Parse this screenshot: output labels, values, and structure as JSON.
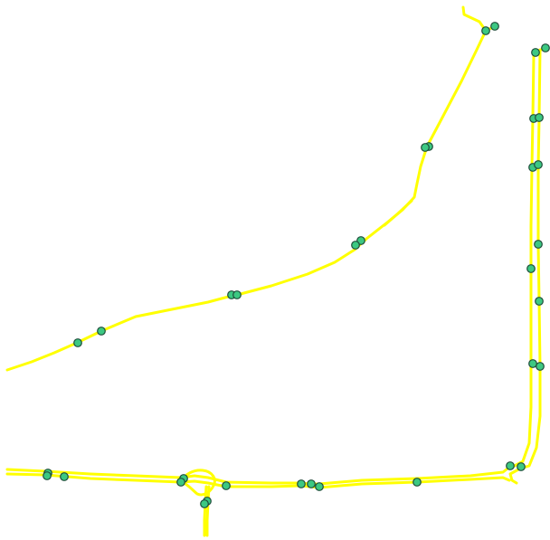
{
  "map": {
    "background_color": "#ffffff",
    "road_color": "#ffff00",
    "stop_fill_color": "#3cc882",
    "stop_stroke_color": "#1f4d3a",
    "features": {
      "roads": [
        "diagonal-route",
        "south-route",
        "east-route",
        "loop-connector",
        "south-spur"
      ],
      "stop_count": 40
    }
  }
}
